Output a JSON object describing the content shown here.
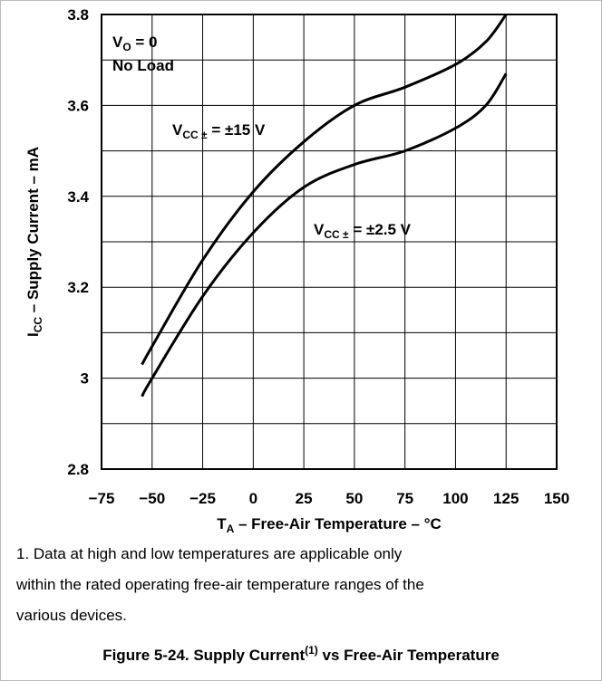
{
  "chart_data": {
    "type": "line",
    "ylabel": {
      "main": "I",
      "sub": "CC",
      "rest": " – Supply Current – mA"
    },
    "xlabel": {
      "main": "T",
      "sub": "A",
      "rest": " – Free-Air Temperature – °C"
    },
    "x": [
      -55,
      -50,
      -25,
      0,
      25,
      50,
      75,
      100,
      115,
      125
    ],
    "series": [
      {
        "name": {
          "main": "V",
          "sub": "CC ±",
          "rest": " = ±15 V"
        },
        "color": "#000000",
        "values": [
          3.03,
          3.07,
          3.26,
          3.41,
          3.52,
          3.6,
          3.64,
          3.69,
          3.74,
          3.8
        ]
      },
      {
        "name": {
          "main": "V",
          "sub": "CC ±",
          "rest": " = ±2.5 V"
        },
        "color": "#000000",
        "values": [
          2.96,
          3.0,
          3.18,
          3.32,
          3.42,
          3.47,
          3.5,
          3.55,
          3.6,
          3.67
        ]
      }
    ],
    "annotations": [
      {
        "main": "V",
        "sub": "O",
        "rest": " = 0"
      },
      "No Load"
    ],
    "xlim": [
      -75,
      150
    ],
    "xticks": [
      {
        "value": -75,
        "label": "−75"
      },
      {
        "value": -50,
        "label": "−50"
      },
      {
        "value": -25,
        "label": "−25"
      },
      0,
      25,
      50,
      75,
      100,
      125,
      150
    ],
    "ylim": [
      2.8,
      3.8
    ],
    "yticks": [
      2.8,
      3,
      3.2,
      3.4,
      3.6,
      3.8
    ],
    "yminor": [
      2.9,
      3.1,
      3.3,
      3.5,
      3.7
    ],
    "grid": true,
    "footnote": [
      "1. Data at high and low temperatures are applicable only",
      "within the rated operating free-air temperature ranges of the",
      "various devices."
    ],
    "caption": {
      "main": "Figure 5-24. Supply Current",
      "sup": "(1)",
      "rest": " vs Free-Air Temperature"
    }
  }
}
